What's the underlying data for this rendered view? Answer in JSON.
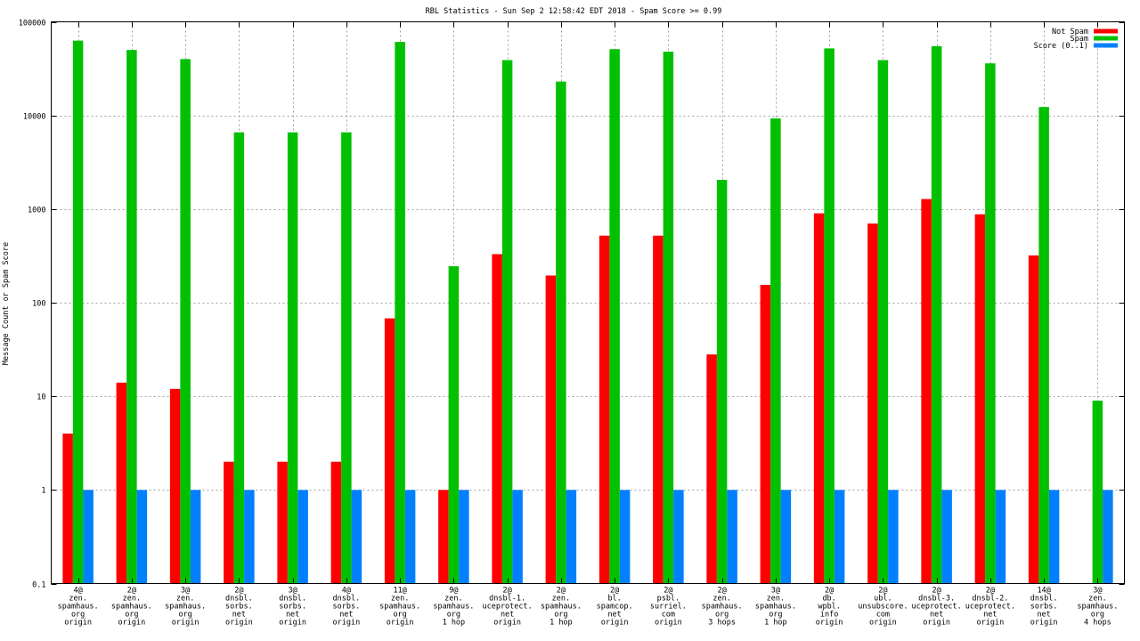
{
  "chart_data": {
    "type": "bar",
    "title": "RBL Statistics - Sun Sep  2 12:58:42 EDT 2018 - Spam Score >= 0.99",
    "xlabel": "",
    "ylabel": "Message Count or Spam Score",
    "yscale": "log",
    "ylim": [
      0.1,
      100000
    ],
    "yticks": [
      {
        "value": 0.1,
        "label": "0.1"
      },
      {
        "value": 1,
        "label": "1"
      },
      {
        "value": 10,
        "label": "10"
      },
      {
        "value": 100,
        "label": "100"
      },
      {
        "value": 1000,
        "label": "1000"
      },
      {
        "value": 10000,
        "label": "10000"
      },
      {
        "value": 100000,
        "label": "100000"
      }
    ],
    "grid": true,
    "legend_position": "top-right",
    "categories": [
      [
        "4@",
        "zen.",
        "spamhaus.",
        "org",
        "origin"
      ],
      [
        "2@",
        "zen.",
        "spamhaus.",
        "org",
        "origin"
      ],
      [
        "3@",
        "zen.",
        "spamhaus.",
        "org",
        "origin"
      ],
      [
        "2@",
        "dnsbl.",
        "sorbs.",
        "net",
        "origin"
      ],
      [
        "3@",
        "dnsbl.",
        "sorbs.",
        "net",
        "origin"
      ],
      [
        "4@",
        "dnsbl.",
        "sorbs.",
        "net",
        "origin"
      ],
      [
        "11@",
        "zen.",
        "spamhaus.",
        "org",
        "origin"
      ],
      [
        "9@",
        "zen.",
        "spamhaus.",
        "org",
        "1 hop"
      ],
      [
        "2@",
        "dnsbl-1.",
        "uceprotect.",
        "net",
        "origin"
      ],
      [
        "2@",
        "zen.",
        "spamhaus.",
        "org",
        "1 hop"
      ],
      [
        "2@",
        "bl.",
        "spamcop.",
        "net",
        "origin"
      ],
      [
        "2@",
        "psbl.",
        "surriel.",
        "com",
        "origin"
      ],
      [
        "2@",
        "zen.",
        "spamhaus.",
        "org",
        "3 hops"
      ],
      [
        "3@",
        "zen.",
        "spamhaus.",
        "org",
        "1 hop"
      ],
      [
        "2@",
        "db.",
        "wpbl.",
        "info",
        "origin"
      ],
      [
        "2@",
        "ubl.",
        "unsubscore.",
        "com",
        "origin"
      ],
      [
        "2@",
        "dnsbl-3.",
        "uceprotect.",
        "net",
        "origin"
      ],
      [
        "2@",
        "dnsbl-2.",
        "uceprotect.",
        "net",
        "origin"
      ],
      [
        "14@",
        "dnsbl.",
        "sorbs.",
        "net",
        "origin"
      ],
      [
        "3@",
        "zen.",
        "spamhaus.",
        "org",
        "4 hops"
      ]
    ],
    "series": [
      {
        "name": "Not Spam",
        "color": "#ff0000",
        "values": [
          4,
          14,
          12,
          2,
          2,
          2,
          68,
          1,
          330,
          195,
          520,
          520,
          28,
          155,
          900,
          700,
          1280,
          880,
          320,
          null
        ]
      },
      {
        "name": "Spam",
        "color": "#00c000",
        "values": [
          63000,
          50000,
          40000,
          6600,
          6600,
          6600,
          61000,
          245,
          39000,
          23000,
          51000,
          48000,
          2050,
          9300,
          52000,
          39000,
          55000,
          36000,
          12300,
          9
        ]
      },
      {
        "name": "Score (0..1)",
        "color": "#0080ff",
        "values": [
          1,
          1,
          1,
          1,
          1,
          1,
          1,
          1,
          1,
          1,
          1,
          1,
          1,
          1,
          1,
          1,
          1,
          1,
          1,
          1
        ]
      }
    ]
  }
}
